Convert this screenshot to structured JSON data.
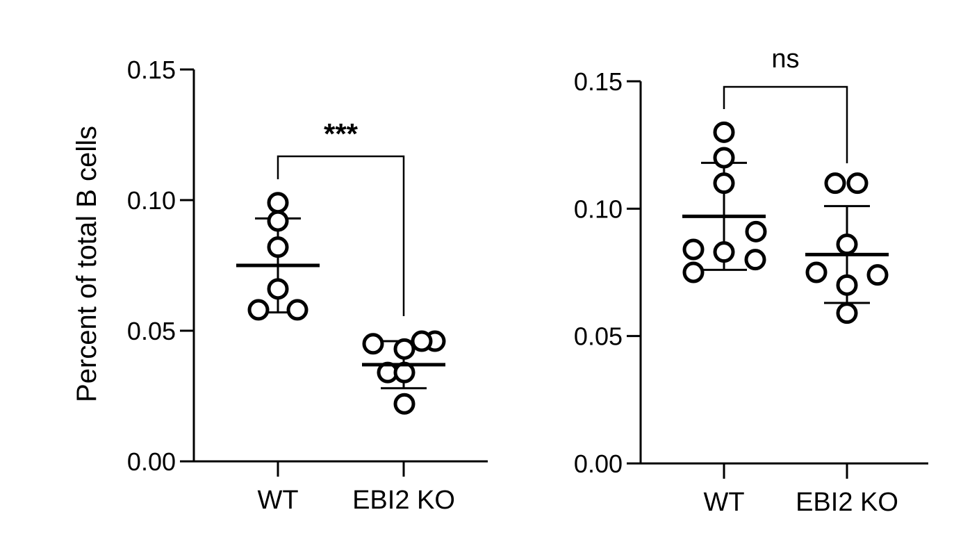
{
  "chart_data": [
    {
      "type": "scatter",
      "title": "",
      "xlabel": "",
      "ylabel": "Percent of total B cells",
      "ylim": [
        0,
        0.15
      ],
      "yticks": [
        "0.00",
        "0.05",
        "0.10",
        "0.15"
      ],
      "ytick_values": [
        0,
        0.05,
        0.1,
        0.15
      ],
      "categories": [
        "WT",
        "EBI2 KO"
      ],
      "series": [
        {
          "values": [
            0.099,
            0.092,
            0.082,
            0.066,
            0.058,
            0.058
          ],
          "mean": 0.075,
          "sd": 0.018
        },
        {
          "values": [
            0.045,
            0.046,
            0.043,
            0.046,
            0.034,
            0.034,
            0.022
          ],
          "mean": 0.037,
          "sd": 0.009
        }
      ],
      "significance": {
        "label": "***",
        "between": [
          "WT",
          "EBI2 KO"
        ]
      }
    },
    {
      "type": "scatter",
      "title": "",
      "xlabel": "",
      "ylabel": "",
      "ylim": [
        0,
        0.15
      ],
      "yticks": [
        "0.00",
        "0.05",
        "0.10",
        "0.15"
      ],
      "ytick_values": [
        0,
        0.05,
        0.1,
        0.15
      ],
      "categories": [
        "WT",
        "EBI2 KO"
      ],
      "series": [
        {
          "values": [
            0.13,
            0.12,
            0.11,
            0.091,
            0.084,
            0.083,
            0.08,
            0.075
          ],
          "mean": 0.097,
          "sd": 0.021
        },
        {
          "values": [
            0.11,
            0.11,
            0.086,
            0.075,
            0.074,
            0.07,
            0.059
          ],
          "mean": 0.082,
          "sd": 0.019
        }
      ],
      "significance": {
        "label": "ns",
        "between": [
          "WT",
          "EBI2 KO"
        ]
      }
    }
  ]
}
